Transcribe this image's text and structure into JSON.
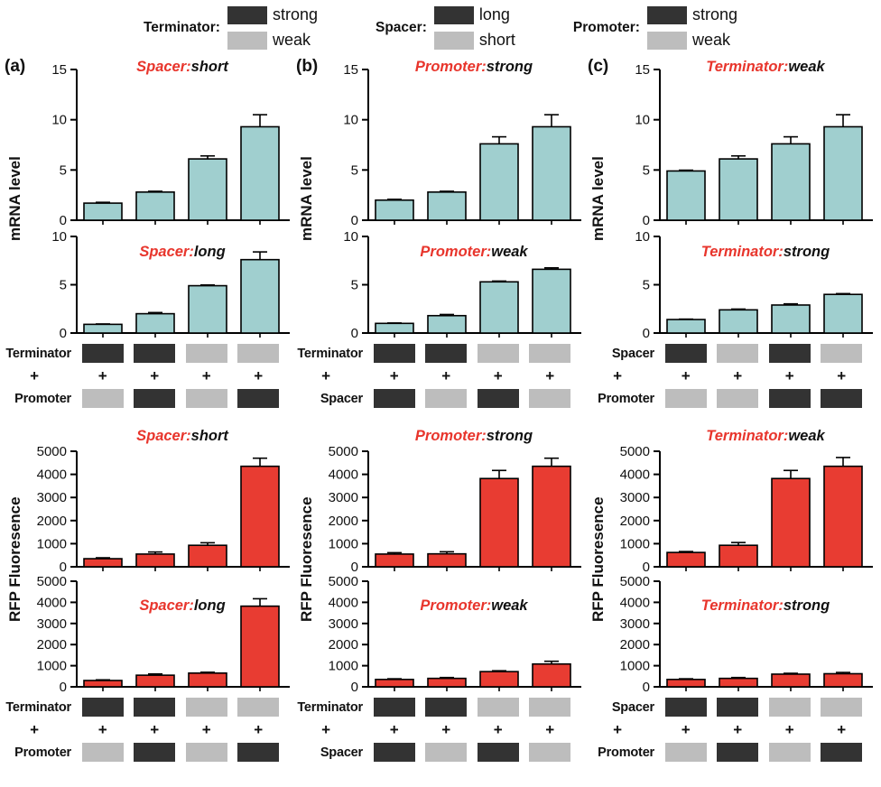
{
  "figure": {
    "panel_labels": [
      "(a)",
      "(b)",
      "(c)"
    ],
    "axis_labels": {
      "mrna": "mRNA level",
      "rfp": "RFP Fluoresence"
    }
  },
  "colors": {
    "mrna_bar": "#a0cfcf",
    "rfp_bar": "#e83c32",
    "dark": "#333333",
    "light": "#bdbdbd",
    "title_accent": "#e8352c",
    "axis": "#000000"
  },
  "legend": {
    "groups": [
      {
        "label": "Terminator:",
        "entries": [
          {
            "swatch": "dark",
            "text": "strong"
          },
          {
            "swatch": "light",
            "text": "weak"
          }
        ]
      },
      {
        "label": "Spacer:",
        "entries": [
          {
            "swatch": "dark",
            "text": "long"
          },
          {
            "swatch": "light",
            "text": "short"
          }
        ]
      },
      {
        "label": "Promoter:",
        "entries": [
          {
            "swatch": "dark",
            "text": "strong"
          },
          {
            "swatch": "light",
            "text": "weak"
          }
        ]
      }
    ]
  },
  "tables": {
    "a": {
      "rows": [
        {
          "label": "Terminator",
          "cells": [
            "dark",
            "dark",
            "light",
            "light"
          ]
        },
        {
          "label": "+",
          "cells": [
            "+",
            "+",
            "+",
            "+"
          ]
        },
        {
          "label": "Promoter",
          "cells": [
            "light",
            "dark",
            "light",
            "dark"
          ]
        }
      ]
    },
    "b": {
      "rows": [
        {
          "label": "Terminator",
          "cells": [
            "dark",
            "dark",
            "light",
            "light"
          ]
        },
        {
          "label": "+",
          "cells": [
            "+",
            "+",
            "+",
            "+"
          ]
        },
        {
          "label": "Spacer",
          "cells": [
            "dark",
            "light",
            "dark",
            "light"
          ]
        }
      ]
    },
    "c_mrna": {
      "rows": [
        {
          "label": "Spacer",
          "cells": [
            "dark",
            "light",
            "dark",
            "light"
          ]
        },
        {
          "label": "+",
          "cells": [
            "+",
            "+",
            "+",
            "+"
          ]
        },
        {
          "label": "Promoter",
          "cells": [
            "light",
            "light",
            "dark",
            "dark"
          ]
        }
      ]
    },
    "c_rfp": {
      "rows": [
        {
          "label": "Spacer",
          "cells": [
            "dark",
            "dark",
            "light",
            "light"
          ]
        },
        {
          "label": "+",
          "cells": [
            "+",
            "+",
            "+",
            "+"
          ]
        },
        {
          "label": "Promoter",
          "cells": [
            "light",
            "dark",
            "light",
            "dark"
          ]
        }
      ]
    }
  },
  "chart_data": [
    {
      "id": "a-mrna-spacer-short",
      "panel": "(a)",
      "type": "bar",
      "measure": "mRNA level",
      "title_prefix": "Spacer:",
      "title_suffix": "short",
      "categories": [
        "Terminator:strong + Promoter:weak",
        "Terminator:strong + Promoter:strong",
        "Terminator:weak + Promoter:weak",
        "Terminator:weak + Promoter:strong"
      ],
      "values": [
        1.7,
        2.8,
        6.1,
        9.3
      ],
      "errors": [
        0.08,
        0.08,
        0.3,
        1.2
      ],
      "ylim": [
        0,
        15
      ],
      "yticks": [
        0,
        5,
        10,
        15
      ],
      "bar_color_key": "mrna_bar"
    },
    {
      "id": "a-mrna-spacer-long",
      "panel": "(a)",
      "type": "bar",
      "measure": "mRNA level",
      "title_prefix": "Spacer:",
      "title_suffix": "long",
      "categories": [
        "Terminator:strong + Promoter:weak",
        "Terminator:strong + Promoter:strong",
        "Terminator:weak + Promoter:weak",
        "Terminator:weak + Promoter:strong"
      ],
      "values": [
        0.9,
        2.0,
        4.9,
        7.6
      ],
      "errors": [
        0.04,
        0.12,
        0.08,
        0.8
      ],
      "ylim": [
        0,
        10
      ],
      "yticks": [
        0,
        5,
        10
      ],
      "bar_color_key": "mrna_bar"
    },
    {
      "id": "b-mrna-promoter-strong",
      "panel": "(b)",
      "type": "bar",
      "measure": "mRNA level",
      "title_prefix": "Promoter:",
      "title_suffix": "strong",
      "categories": [
        "Terminator:strong + Spacer:long",
        "Terminator:strong + Spacer:short",
        "Terminator:weak + Spacer:long",
        "Terminator:weak + Spacer:short"
      ],
      "values": [
        2.0,
        2.8,
        7.6,
        9.3
      ],
      "errors": [
        0.08,
        0.08,
        0.7,
        1.2
      ],
      "ylim": [
        0,
        15
      ],
      "yticks": [
        0,
        5,
        10,
        15
      ],
      "bar_color_key": "mrna_bar"
    },
    {
      "id": "b-mrna-promoter-weak",
      "panel": "(b)",
      "type": "bar",
      "measure": "mRNA level",
      "title_prefix": "Promoter:",
      "title_suffix": "weak",
      "categories": [
        "Terminator:strong + Spacer:long",
        "Terminator:strong + Spacer:short",
        "Terminator:weak + Spacer:long",
        "Terminator:weak + Spacer:short"
      ],
      "values": [
        1.0,
        1.8,
        5.3,
        6.6
      ],
      "errors": [
        0.04,
        0.12,
        0.08,
        0.15
      ],
      "ylim": [
        0,
        10
      ],
      "yticks": [
        0,
        5,
        10
      ],
      "bar_color_key": "mrna_bar"
    },
    {
      "id": "c-mrna-terminator-weak",
      "panel": "(c)",
      "type": "bar",
      "measure": "mRNA level",
      "title_prefix": "Terminator:",
      "title_suffix": "weak",
      "categories": [
        "Spacer:long + Promoter:weak",
        "Spacer:short + Promoter:weak",
        "Spacer:long + Promoter:strong",
        "Spacer:short + Promoter:strong"
      ],
      "values": [
        4.9,
        6.1,
        7.6,
        9.3
      ],
      "errors": [
        0.08,
        0.3,
        0.7,
        1.2
      ],
      "ylim": [
        0,
        15
      ],
      "yticks": [
        0,
        5,
        10,
        15
      ],
      "bar_color_key": "mrna_bar"
    },
    {
      "id": "c-mrna-terminator-strong",
      "panel": "(c)",
      "type": "bar",
      "measure": "mRNA level",
      "title_prefix": "Terminator:",
      "title_suffix": "strong",
      "categories": [
        "Spacer:long + Promoter:weak",
        "Spacer:short + Promoter:weak",
        "Spacer:long + Promoter:strong",
        "Spacer:short + Promoter:strong"
      ],
      "values": [
        1.4,
        2.4,
        2.9,
        4.0
      ],
      "errors": [
        0.04,
        0.08,
        0.12,
        0.08
      ],
      "ylim": [
        0,
        10
      ],
      "yticks": [
        0,
        5,
        10
      ],
      "bar_color_key": "mrna_bar"
    },
    {
      "id": "a-rfp-spacer-short",
      "panel": "(a)",
      "type": "bar",
      "measure": "RFP Fluoresence",
      "title_prefix": "Spacer:",
      "title_suffix": "short",
      "categories": [
        "Terminator:strong + Promoter:weak",
        "Terminator:strong + Promoter:strong",
        "Terminator:weak + Promoter:weak",
        "Terminator:weak + Promoter:strong"
      ],
      "values": [
        350,
        550,
        930,
        4350
      ],
      "errors": [
        40,
        90,
        110,
        350
      ],
      "ylim": [
        0,
        5000
      ],
      "yticks": [
        0,
        1000,
        2000,
        3000,
        4000,
        5000
      ],
      "bar_color_key": "rfp_bar"
    },
    {
      "id": "a-rfp-spacer-long",
      "panel": "(a)",
      "type": "bar",
      "measure": "RFP Fluoresence",
      "title_prefix": "Spacer:",
      "title_suffix": "long",
      "categories": [
        "Terminator:strong + Promoter:weak",
        "Terminator:strong + Promoter:strong",
        "Terminator:weak + Promoter:weak",
        "Terminator:weak + Promoter:strong"
      ],
      "values": [
        300,
        550,
        650,
        3820
      ],
      "errors": [
        30,
        60,
        40,
        350
      ],
      "ylim": [
        0,
        5000
      ],
      "yticks": [
        0,
        1000,
        2000,
        3000,
        4000,
        5000
      ],
      "bar_color_key": "rfp_bar"
    },
    {
      "id": "b-rfp-promoter-strong",
      "panel": "(b)",
      "type": "bar",
      "measure": "RFP Fluoresence",
      "title_prefix": "Promoter:",
      "title_suffix": "strong",
      "categories": [
        "Terminator:strong + Spacer:long",
        "Terminator:strong + Spacer:short",
        "Terminator:weak + Spacer:long",
        "Terminator:weak + Spacer:short"
      ],
      "values": [
        550,
        560,
        3820,
        4350
      ],
      "errors": [
        60,
        90,
        350,
        350
      ],
      "ylim": [
        0,
        5000
      ],
      "yticks": [
        0,
        1000,
        2000,
        3000,
        4000,
        5000
      ],
      "bar_color_key": "rfp_bar"
    },
    {
      "id": "b-rfp-promoter-weak",
      "panel": "(b)",
      "type": "bar",
      "measure": "RFP Fluoresence",
      "title_prefix": "Promoter:",
      "title_suffix": "weak",
      "categories": [
        "Terminator:strong + Spacer:long",
        "Terminator:strong + Spacer:short",
        "Terminator:weak + Spacer:long",
        "Terminator:weak + Spacer:short"
      ],
      "values": [
        350,
        400,
        720,
        1080
      ],
      "errors": [
        30,
        40,
        40,
        130
      ],
      "ylim": [
        0,
        5000
      ],
      "yticks": [
        0,
        1000,
        2000,
        3000,
        4000,
        5000
      ],
      "bar_color_key": "rfp_bar"
    },
    {
      "id": "c-rfp-terminator-weak",
      "panel": "(c)",
      "type": "bar",
      "measure": "RFP Fluoresence",
      "title_prefix": "Terminator:",
      "title_suffix": "weak",
      "categories": [
        "Spacer:long + Promoter:weak",
        "Spacer:long + Promoter:strong",
        "Spacer:short + Promoter:weak",
        "Spacer:short + Promoter:strong"
      ],
      "values": [
        620,
        930,
        3820,
        4350
      ],
      "errors": [
        40,
        120,
        350,
        380
      ],
      "ylim": [
        0,
        5000
      ],
      "yticks": [
        0,
        1000,
        2000,
        3000,
        4000,
        5000
      ],
      "bar_color_key": "rfp_bar"
    },
    {
      "id": "c-rfp-terminator-strong",
      "panel": "(c)",
      "type": "bar",
      "measure": "RFP Fluoresence",
      "title_prefix": "Terminator:",
      "title_suffix": "strong",
      "categories": [
        "Spacer:long + Promoter:weak",
        "Spacer:long + Promoter:strong",
        "Spacer:short + Promoter:weak",
        "Spacer:short + Promoter:strong"
      ],
      "values": [
        350,
        400,
        600,
        620
      ],
      "errors": [
        30,
        40,
        40,
        60
      ],
      "ylim": [
        0,
        5000
      ],
      "yticks": [
        0,
        1000,
        2000,
        3000,
        4000,
        5000
      ],
      "bar_color_key": "rfp_bar"
    }
  ]
}
